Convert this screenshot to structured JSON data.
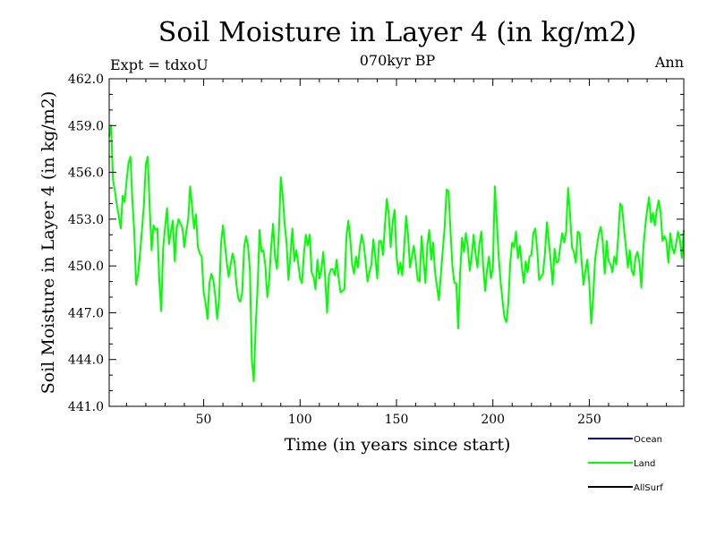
{
  "chart_data": {
    "type": "line",
    "title": "Soil Moisture in Layer 4 (in kg/m2)",
    "subtitle": "070kyr BP",
    "left_note": "Expt = tdxoU",
    "right_note": "Ann",
    "xlabel": "Time (in years since start)",
    "ylabel": "Soil Moisture in Layer 4 (in kg/m2)",
    "xlim": [
      1,
      299
    ],
    "ylim": [
      441.0,
      462.0
    ],
    "xticks": [
      50,
      100,
      150,
      200,
      250
    ],
    "yticks": [
      "441.0",
      "444.0",
      "447.0",
      "450.0",
      "453.0",
      "456.0",
      "459.0",
      "462.0"
    ],
    "grid": false,
    "legend_position": "bottom-right",
    "series": [
      {
        "name": "Ocean",
        "color": "#0000cc",
        "values": []
      },
      {
        "name": "Land",
        "color": "#00ff00",
        "values": [
          458.3,
          459.0,
          455.5,
          454.8,
          453.9,
          453.2,
          452.4,
          454.5,
          454.1,
          455.4,
          456.6,
          457.0,
          454.3,
          452.2,
          448.8,
          449.5,
          450.8,
          452.3,
          453.9,
          456.5,
          457.0,
          453.8,
          451.0,
          452.6,
          452.3,
          452.4,
          449.0,
          447.1,
          451.2,
          452.5,
          453.7,
          451.4,
          452.2,
          452.9,
          450.3,
          452.4,
          453.0,
          452.7,
          452.4,
          451.2,
          452.2,
          453.0,
          455.1,
          453.8,
          452.4,
          453.3,
          451.2,
          450.8,
          450.6,
          448.3,
          447.6,
          446.6,
          448.9,
          449.5,
          449.1,
          448.1,
          446.6,
          447.9,
          451.4,
          452.6,
          451.4,
          450.2,
          449.3,
          450.1,
          450.8,
          450.3,
          448.8,
          447.9,
          447.7,
          448.3,
          451.2,
          451.9,
          451.3,
          449.7,
          444.0,
          442.6,
          446.2,
          448.7,
          452.3,
          450.9,
          451.0,
          450.0,
          448.0,
          449.1,
          451.2,
          452.7,
          450.6,
          449.8,
          452.1,
          455.7,
          454.5,
          452.7,
          451.5,
          449.1,
          450.7,
          452.4,
          450.3,
          451.0,
          450.2,
          449.2,
          448.9,
          450.8,
          452.0,
          451.3,
          452.0,
          449.6,
          449.3,
          448.5,
          450.4,
          449.2,
          449.7,
          450.9,
          449.3,
          447.0,
          449.4,
          449.8,
          449.8,
          449.4,
          450.4,
          449.2,
          448.3,
          448.4,
          448.5,
          451.8,
          452.9,
          451.8,
          450.1,
          449.5,
          450.6,
          449.9,
          451.2,
          452.0,
          451.4,
          450.3,
          449.0,
          449.6,
          450.1,
          451.7,
          450.6,
          449.2,
          451.6,
          451.6,
          450.7,
          452.6,
          454.3,
          453.3,
          451.2,
          452.8,
          453.6,
          450.7,
          449.5,
          450.2,
          449.4,
          451.2,
          453.2,
          452.0,
          449.9,
          450.6,
          451.3,
          450.3,
          449.1,
          449.0,
          451.9,
          450.5,
          448.9,
          451.3,
          452.3,
          450.4,
          451.5,
          449.6,
          448.7,
          447.8,
          449.4,
          451.0,
          452.5,
          454.9,
          454.8,
          452.3,
          450.0,
          448.9,
          448.9,
          446.0,
          449.5,
          451.8,
          450.9,
          452.1,
          451.2,
          449.7,
          450.6,
          452.0,
          450.8,
          449.9,
          451.4,
          452.2,
          449.9,
          448.4,
          449.8,
          450.6,
          449.2,
          449.9,
          455.1,
          452.9,
          450.6,
          449.0,
          447.8,
          446.7,
          446.4,
          447.6,
          450.2,
          451.5,
          451.2,
          452.2,
          450.5,
          451.3,
          450.0,
          448.9,
          450.3,
          449.6,
          450.6,
          450.7,
          452.1,
          452.4,
          451.0,
          449.1,
          449.3,
          449.5,
          450.8,
          452.8,
          451.6,
          450.3,
          448.8,
          451.1,
          450.2,
          450.3,
          451.3,
          452.1,
          451.5,
          452.2,
          455.0,
          453.4,
          451.2,
          450.9,
          450.2,
          452.2,
          452.1,
          450.3,
          448.8,
          449.7,
          450.4,
          448.9,
          446.3,
          448.0,
          450.4,
          451.3,
          452.1,
          452.5,
          451.5,
          449.5,
          451.6,
          450.3,
          450.1,
          449.6,
          450.6,
          450.1,
          451.9,
          454.0,
          453.8,
          452.4,
          451.2,
          449.9,
          451.0,
          449.7,
          449.4,
          450.6,
          450.9,
          450.2,
          448.6,
          451.1,
          452.5,
          453.6,
          454.4,
          452.8,
          453.4,
          452.6,
          453.6,
          454.2,
          453.4,
          451.6,
          451.9,
          451.6,
          450.2,
          452.1,
          451.2,
          450.8,
          451.4,
          452.2,
          451.7,
          450.5,
          452.3
        ]
      },
      {
        "name": "AllSurf",
        "color": "#000000",
        "values": []
      }
    ]
  }
}
